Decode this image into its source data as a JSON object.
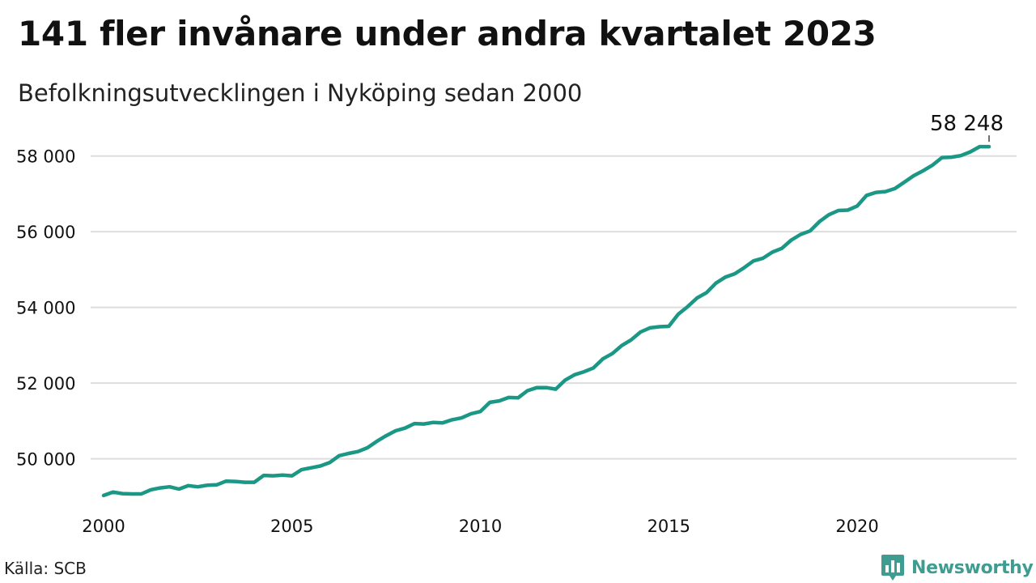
{
  "title": "141 fler invånare under andra kvartalet 2023",
  "subtitle": "Befolkningsutvecklingen i Nyköping sedan 2000",
  "source": "Källa: SCB",
  "brand": {
    "name": "Newsworthy",
    "icon": "newsworthy-bar-chart-logo",
    "color": "#3f9c90"
  },
  "colors": {
    "line": "#1a9785",
    "grid": "#dddddd",
    "text": "#111111"
  },
  "chart_data": {
    "type": "line",
    "title": "141 fler invånare under andra kvartalet 2023",
    "subtitle": "Befolkningsutvecklingen i Nyköping sedan 2000",
    "xlabel": "",
    "ylabel": "",
    "grid": true,
    "xlim": [
      2000.0,
      2023.5
    ],
    "ylim": [
      48750,
      58700
    ],
    "x_ticks": [
      2000,
      2005,
      2010,
      2015,
      2020
    ],
    "x_tick_labels": [
      "2000",
      "2005",
      "2010",
      "2015",
      "2020"
    ],
    "y_ticks": [
      50000,
      52000,
      54000,
      56000,
      58000
    ],
    "y_tick_labels": [
      "50 000",
      "52 000",
      "54 000",
      "56 000",
      "58 000"
    ],
    "series": [
      {
        "color": "#1a9785",
        "x": [
          2000.0,
          2000.25,
          2000.5,
          2000.75,
          2001.0,
          2001.25,
          2001.5,
          2001.75,
          2002.0,
          2002.25,
          2002.5,
          2002.75,
          2003.0,
          2003.25,
          2003.5,
          2003.75,
          2004.0,
          2004.25,
          2004.5,
          2004.75,
          2005.0,
          2005.25,
          2005.5,
          2005.75,
          2006.0,
          2006.25,
          2006.5,
          2006.75,
          2007.0,
          2007.25,
          2007.5,
          2007.75,
          2008.0,
          2008.25,
          2008.5,
          2008.75,
          2009.0,
          2009.25,
          2009.5,
          2009.75,
          2010.0,
          2010.25,
          2010.5,
          2010.75,
          2011.0,
          2011.25,
          2011.5,
          2011.75,
          2012.0,
          2012.25,
          2012.5,
          2012.75,
          2013.0,
          2013.25,
          2013.5,
          2013.75,
          2014.0,
          2014.25,
          2014.5,
          2014.75,
          2015.0,
          2015.25,
          2015.5,
          2015.75,
          2016.0,
          2016.25,
          2016.5,
          2016.75,
          2017.0,
          2017.25,
          2017.5,
          2017.75,
          2018.0,
          2018.25,
          2018.5,
          2018.75,
          2019.0,
          2019.25,
          2019.5,
          2019.75,
          2020.0,
          2020.25,
          2020.5,
          2020.75,
          2021.0,
          2021.25,
          2021.5,
          2021.75,
          2022.0,
          2022.25,
          2022.5,
          2022.75,
          2023.0,
          2023.25,
          2023.5
        ],
        "values": [
          49030,
          49120,
          49080,
          49070,
          49070,
          49180,
          49230,
          49260,
          49200,
          49290,
          49260,
          49300,
          49310,
          49410,
          49400,
          49380,
          49380,
          49560,
          49550,
          49570,
          49550,
          49710,
          49760,
          49810,
          49900,
          50080,
          50140,
          50190,
          50290,
          50460,
          50610,
          50740,
          50810,
          50930,
          50920,
          50960,
          50950,
          51030,
          51080,
          51190,
          51250,
          51490,
          51530,
          51620,
          51610,
          51800,
          51880,
          51880,
          51840,
          52080,
          52220,
          52300,
          52400,
          52640,
          52780,
          52990,
          53140,
          53350,
          53460,
          53490,
          53500,
          53820,
          54020,
          54250,
          54390,
          54640,
          54800,
          54890,
          55050,
          55230,
          55300,
          55460,
          55560,
          55780,
          55930,
          56020,
          56270,
          56450,
          56560,
          56570,
          56680,
          56960,
          57040,
          57060,
          57140,
          57310,
          57480,
          57610,
          57760,
          57960,
          57970,
          58010,
          58110,
          58248,
          58248
        ]
      }
    ],
    "annotations": [
      {
        "text": "58 248",
        "x": 2023.5,
        "y": 58248
      }
    ]
  }
}
